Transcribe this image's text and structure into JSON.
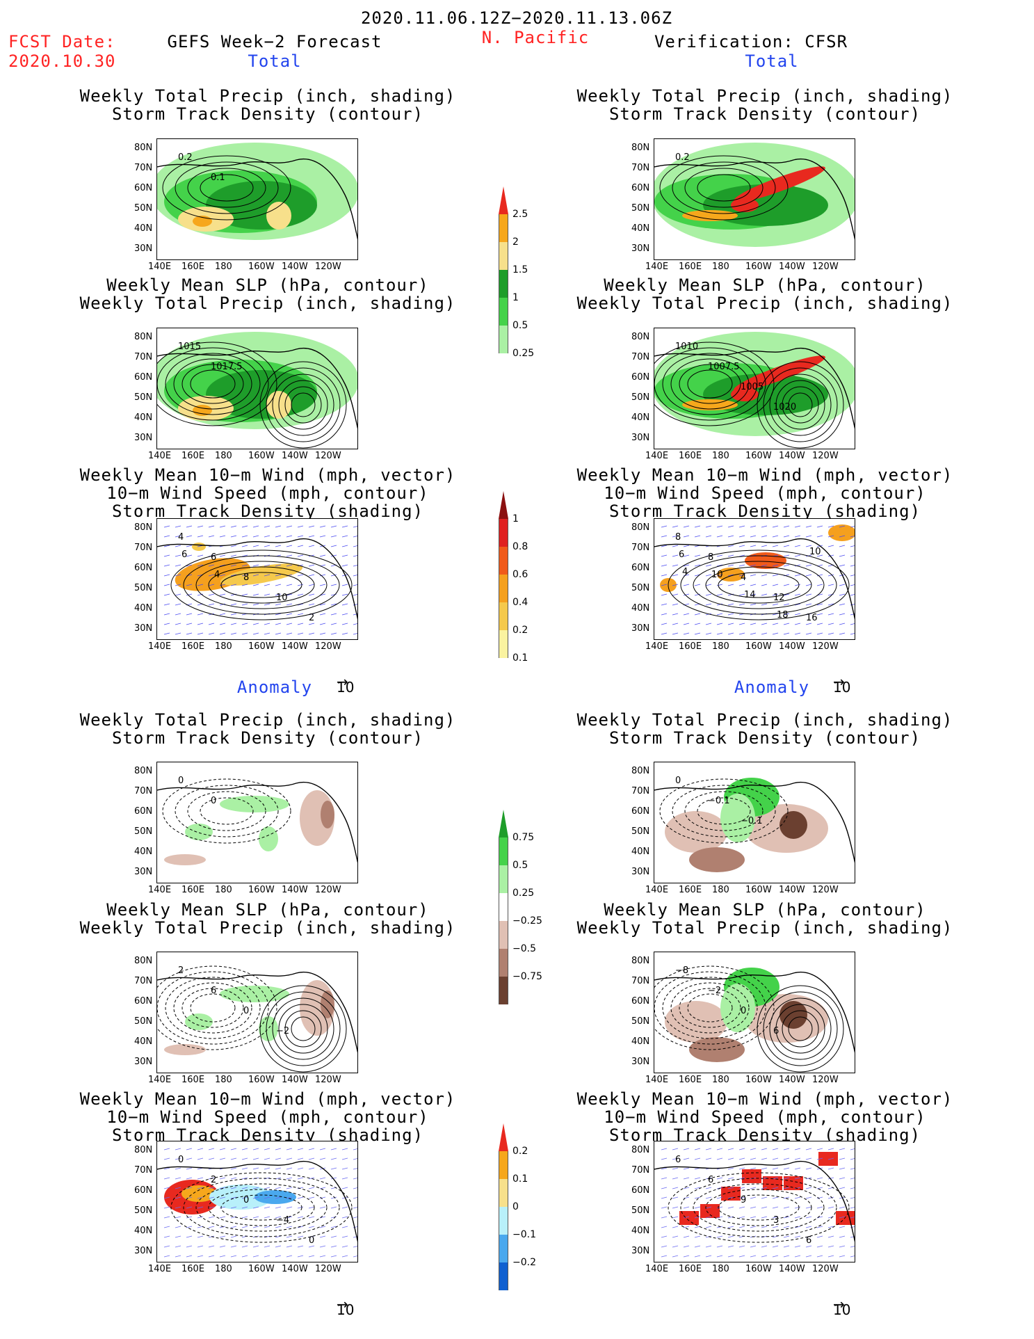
{
  "header": {
    "date_range": "2020.11.06.12Z−2020.11.13.06Z",
    "fcst_label": "FCST Date:",
    "fcst_date": "2020.10.30",
    "left_title": "GEFS Week−2 Forecast",
    "region": "N. Pacific",
    "right_title": "Verification: CFSR",
    "total": "Total",
    "anomaly": "Anomaly"
  },
  "panel_titles": {
    "precip_storm": [
      "Weekly Total Precip (inch, shading)",
      "Storm Track Density (contour)"
    ],
    "slp_precip": [
      "Weekly Mean SLP (hPa, contour)",
      "Weekly Total Precip (inch, shading)"
    ],
    "wind": [
      "Weekly Mean 10−m Wind (mph, vector)",
      "10−m Wind Speed (mph, contour)",
      "Storm Track Density (shading)"
    ]
  },
  "axes": {
    "lat_labels": [
      "80N",
      "70N",
      "60N",
      "50N",
      "40N",
      "30N"
    ],
    "lon_labels": [
      "140E",
      "160E",
      "180",
      "160W",
      "140W",
      "120W"
    ]
  },
  "vector_scale": "10",
  "colorbars": {
    "total_precip": {
      "labels": [
        "2.5",
        "2",
        "1.5",
        "1",
        "0.5",
        "0.25"
      ],
      "colors": [
        "#e8291f",
        "#f6a71c",
        "#f7e08b",
        "#1e9d2a",
        "#44d24a",
        "#aaf0a4"
      ]
    },
    "storm_density": {
      "labels": [
        "1",
        "0.8",
        "0.6",
        "0.4",
        "0.2",
        "0.1"
      ],
      "colors": [
        "#8b1010",
        "#e02020",
        "#f05a1a",
        "#f5a01e",
        "#f5c94c",
        "#faf3a0"
      ]
    },
    "precip_anomaly": {
      "labels": [
        "0.75",
        "0.5",
        "0.25",
        "−0.25",
        "−0.5",
        "−0.75"
      ],
      "colors": [
        "#1e9d2a",
        "#44d24a",
        "#aaf0a4",
        "#ffffff",
        "#e0c0b4",
        "#b08070",
        "#6b4030"
      ]
    },
    "storm_anomaly": {
      "labels": [
        "0.2",
        "0.1",
        "0",
        "−0.1",
        "−0.2"
      ],
      "colors": [
        "#e8291f",
        "#f6a71c",
        "#f7e08b",
        "#b8f0fa",
        "#4aa8ee",
        "#1060d0"
      ]
    }
  },
  "contour_labels": {
    "fc_total_precip": [
      "0.2",
      "0.1"
    ],
    "vf_total_precip": [
      "0.2"
    ],
    "fc_total_slp": [
      "1015",
      "1017.5"
    ],
    "vf_total_slp": [
      "1010",
      "1007.5",
      "1005",
      "1020"
    ],
    "fc_total_wind": [
      "4",
      "6",
      "8",
      "10",
      "2",
      "6",
      "4"
    ],
    "vf_total_wind": [
      "8",
      "8",
      "4",
      "12",
      "16",
      "6",
      "10",
      "14",
      "18",
      "10",
      "4"
    ],
    "fc_anom_precip": [
      "0",
      "0"
    ],
    "vf_anom_precip": [
      "0",
      "−0.1",
      "−0.1"
    ],
    "fc_anom_slp": [
      "2",
      "6",
      "0",
      "−2"
    ],
    "vf_anom_slp": [
      "−8",
      "−2",
      "0",
      "6"
    ],
    "fc_anom_wind": [
      "0",
      "2",
      "0",
      "−4",
      "0"
    ],
    "vf_anom_wind": [
      "6",
      "6",
      "9",
      "3",
      "6"
    ]
  }
}
